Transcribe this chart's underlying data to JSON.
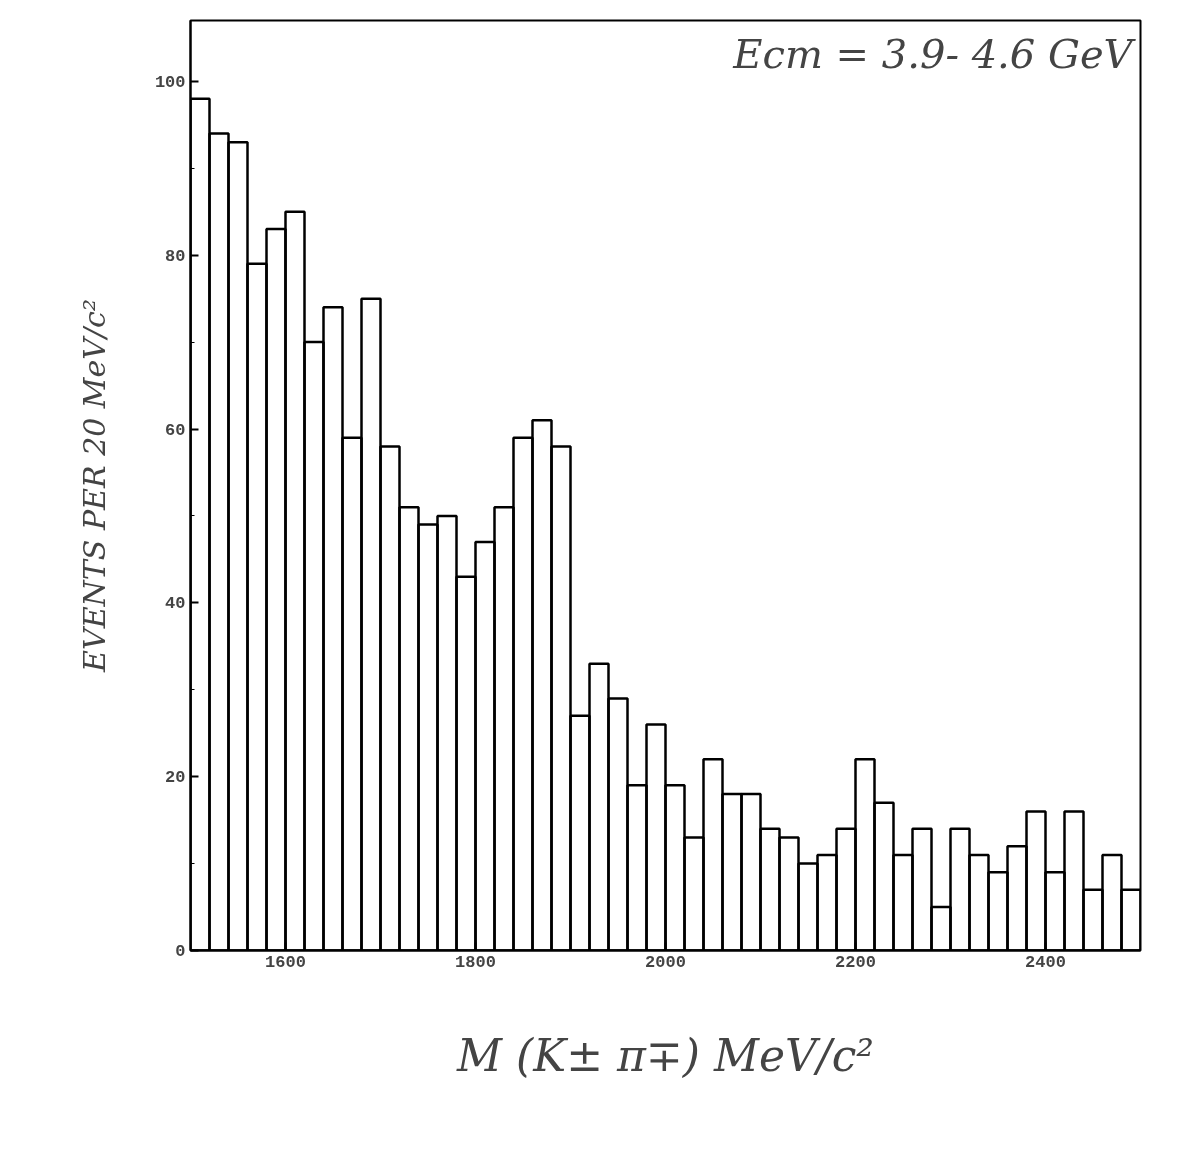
{
  "chart_data": {
    "type": "histogram",
    "bins": [
      1500,
      1520,
      1540,
      1560,
      1580,
      1600,
      1620,
      1640,
      1660,
      1680,
      1700,
      1720,
      1740,
      1760,
      1780,
      1800,
      1820,
      1840,
      1860,
      1880,
      1900,
      1920,
      1940,
      1960,
      1980,
      2000,
      2020,
      2040,
      2060,
      2080,
      2100,
      2120,
      2140,
      2160,
      2180,
      2200,
      2220,
      2240,
      2260,
      2280,
      2300,
      2320,
      2340,
      2360,
      2380,
      2400,
      2420,
      2440,
      2460,
      2480,
      2500
    ],
    "values": [
      98,
      94,
      93,
      79,
      83,
      85,
      70,
      74,
      59,
      75,
      58,
      51,
      49,
      50,
      43,
      47,
      51,
      59,
      61,
      58,
      27,
      33,
      29,
      19,
      26,
      19,
      13,
      22,
      18,
      18,
      14,
      13,
      10,
      11,
      14,
      22,
      17,
      11,
      14,
      5,
      14,
      11,
      9,
      12,
      16,
      9,
      16,
      7,
      11,
      7
    ],
    "color": "#000000",
    "xlim": [
      1500,
      2500
    ],
    "ylim": [
      0,
      107
    ],
    "xticks": [
      1600,
      1800,
      2000,
      2200,
      2400
    ],
    "yticks": [
      0,
      20,
      40,
      60,
      80,
      100
    ],
    "xlabel": "M (K± π∓) MeV/c²",
    "ylabel": "EVENTS PER 20 MeV/c²",
    "annotations": [
      "Ecm = 3.9- 4.6 GeV"
    ],
    "grid": false
  }
}
